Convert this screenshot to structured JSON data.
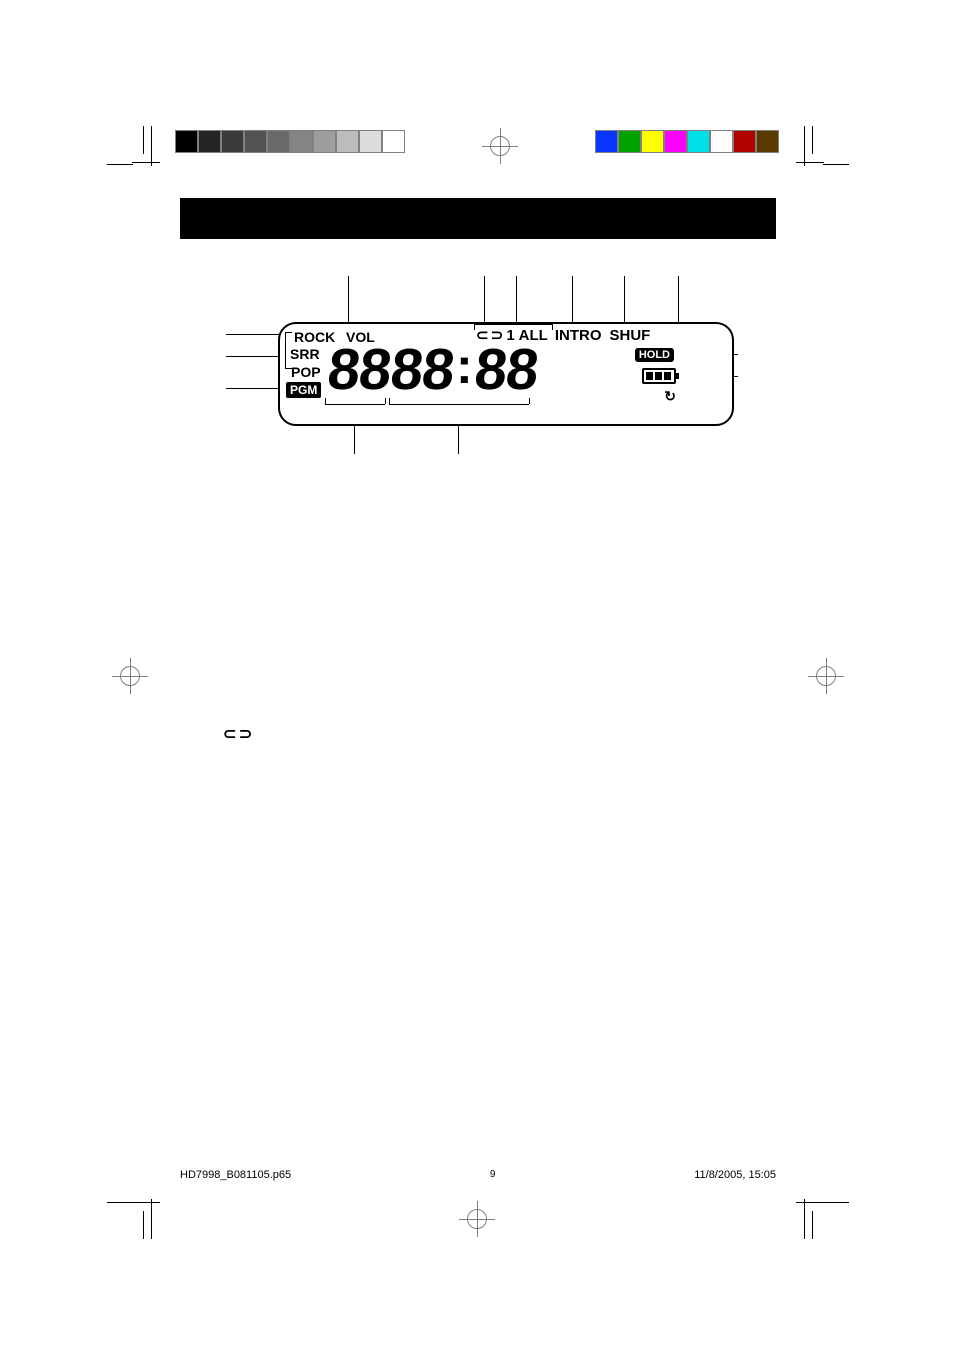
{
  "print": {
    "grayscale_swatches": [
      "#000000",
      "#242424",
      "#3a3a3a",
      "#525252",
      "#6a6a6a",
      "#848484",
      "#9e9e9e",
      "#bcbcbc",
      "#dcdcdc",
      "#ffffff"
    ],
    "color_swatches": [
      "#0a34ff",
      "#00a200",
      "#ffff00",
      "#ff00ff",
      "#00e0e8",
      "#ffffff",
      "#b00000",
      "#5a3a00"
    ]
  },
  "lcd": {
    "rock": "ROCK",
    "vol": "VOL",
    "srr": "SRR",
    "pop": "POP",
    "pgm": "PGM",
    "repeat_label_1": "1",
    "repeat_label_all": "ALL",
    "intro": "INTRO",
    "shuf": "SHUF",
    "digits_track": "88",
    "digits_min": "88",
    "digits_sec": "88",
    "hold": "HOLD"
  },
  "body_repeat_icon": "⊂ ⊃",
  "footer": {
    "file": "HD7998_B081105.p65",
    "page": "9",
    "date": "11/8/2005, 15:05"
  }
}
